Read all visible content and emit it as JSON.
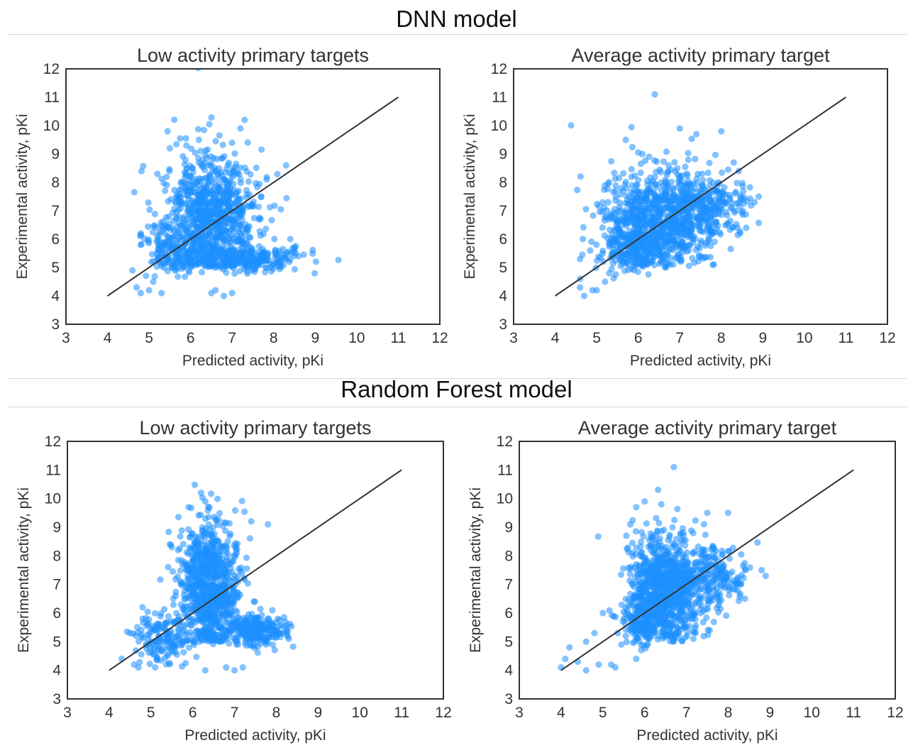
{
  "sections": [
    {
      "title": "DNN model"
    },
    {
      "title": "Random Forest model"
    }
  ],
  "chart_data": [
    {
      "type": "scatter",
      "title": "Low activity primary targets",
      "xlabel": "Predicted activity, pKi",
      "ylabel": "Experimental activity, pKi",
      "xlim": [
        3,
        12
      ],
      "ylim": [
        3,
        12
      ],
      "xticks": [
        "3",
        "4",
        "5",
        "6",
        "7",
        "8",
        "9",
        "10",
        "11",
        "12"
      ],
      "yticks": [
        "3",
        "4",
        "5",
        "6",
        "7",
        "8",
        "9",
        "10",
        "11",
        "12"
      ],
      "reference_line": {
        "x": [
          4,
          11
        ],
        "y": [
          4,
          11
        ]
      },
      "grid": false,
      "point_color": "#1e90ff",
      "line_color": "#333333",
      "cloud": [
        {
          "cx": 6.5,
          "cy": 6.8,
          "sx": 0.55,
          "sy": 1.1,
          "n": 900
        },
        {
          "cx": 7.4,
          "cy": 5.3,
          "sx": 0.6,
          "sy": 0.25,
          "n": 250
        },
        {
          "cx": 5.6,
          "cy": 5.6,
          "sx": 0.35,
          "sy": 0.45,
          "n": 150
        }
      ],
      "outliers": [
        [
          4.6,
          4.9
        ],
        [
          4.7,
          4.3
        ],
        [
          4.8,
          4.1
        ],
        [
          5.0,
          4.2
        ],
        [
          5.1,
          4.5
        ],
        [
          5.3,
          4.1
        ],
        [
          4.8,
          6.2
        ],
        [
          5.2,
          6.1
        ],
        [
          5.2,
          8.3
        ],
        [
          5.5,
          9.2
        ],
        [
          5.9,
          9.3
        ],
        [
          6.2,
          9.5
        ],
        [
          6.6,
          4.2
        ],
        [
          6.8,
          4.0
        ],
        [
          7.0,
          4.1
        ],
        [
          7.3,
          10.2
        ],
        [
          7.2,
          9.9
        ],
        [
          8.3,
          8.6
        ],
        [
          8.6,
          5.4
        ],
        [
          8.5,
          5.7
        ],
        [
          8.4,
          6.0
        ],
        [
          6.5,
          4.1
        ]
      ]
    },
    {
      "type": "scatter",
      "title": "Average activity primary target",
      "xlabel": "Predicted activity, pKi",
      "ylabel": "Experimental activity, pKi",
      "xlim": [
        3,
        12
      ],
      "ylim": [
        3,
        12
      ],
      "xticks": [
        "3",
        "4",
        "5",
        "6",
        "7",
        "8",
        "9",
        "10",
        "11",
        "12"
      ],
      "yticks": [
        "3",
        "4",
        "5",
        "6",
        "7",
        "8",
        "9",
        "10",
        "11",
        "12"
      ],
      "reference_line": {
        "x": [
          4,
          11
        ],
        "y": [
          4,
          11
        ]
      },
      "grid": false,
      "point_color": "#1e90ff",
      "line_color": "#333333",
      "cloud": [
        {
          "cx": 6.5,
          "cy": 6.6,
          "sx": 0.65,
          "sy": 0.9,
          "n": 900
        },
        {
          "cx": 7.7,
          "cy": 7.3,
          "sx": 0.5,
          "sy": 0.5,
          "n": 200
        },
        {
          "cx": 5.8,
          "cy": 5.6,
          "sx": 0.4,
          "sy": 0.4,
          "n": 150
        }
      ],
      "outliers": [
        [
          4.6,
          5.3
        ],
        [
          4.6,
          4.6
        ],
        [
          4.6,
          4.3
        ],
        [
          4.7,
          4.0
        ],
        [
          4.9,
          4.2
        ],
        [
          5.0,
          4.2
        ],
        [
          5.2,
          4.5
        ],
        [
          5.3,
          4.8
        ],
        [
          6.4,
          11.1
        ],
        [
          7.0,
          9.9
        ],
        [
          7.4,
          9.7
        ],
        [
          8.0,
          9.8
        ],
        [
          5.7,
          9.5
        ],
        [
          8.9,
          7.5
        ],
        [
          8.8,
          7.3
        ],
        [
          8.6,
          6.4
        ],
        [
          6.1,
          9.0
        ],
        [
          8.3,
          8.7
        ]
      ]
    },
    {
      "type": "scatter",
      "title": "Low activity primary targets",
      "xlabel": "Predicted activity, pKi",
      "ylabel": "Experimental activity, pKi",
      "xlim": [
        3,
        12
      ],
      "ylim": [
        3,
        12
      ],
      "xticks": [
        "3",
        "4",
        "5",
        "6",
        "7",
        "8",
        "9",
        "10",
        "11",
        "12"
      ],
      "yticks": [
        "3",
        "4",
        "5",
        "6",
        "7",
        "8",
        "9",
        "10",
        "11",
        "12"
      ],
      "reference_line": {
        "x": [
          4,
          11
        ],
        "y": [
          4,
          11
        ]
      },
      "grid": false,
      "point_color": "#1e90ff",
      "line_color": "#333333",
      "cloud": [
        {
          "cx": 6.4,
          "cy": 6.9,
          "sx": 0.35,
          "sy": 1.1,
          "n": 900
        },
        {
          "cx": 7.5,
          "cy": 5.4,
          "sx": 0.35,
          "sy": 0.3,
          "n": 250
        },
        {
          "cx": 5.3,
          "cy": 5.1,
          "sx": 0.35,
          "sy": 0.4,
          "n": 150
        }
      ],
      "outliers": [
        [
          4.3,
          4.4
        ],
        [
          4.5,
          5.3
        ],
        [
          4.6,
          4.2
        ],
        [
          4.7,
          4.1
        ],
        [
          4.8,
          6.2
        ],
        [
          4.8,
          5.8
        ],
        [
          5.1,
          4.1
        ],
        [
          5.5,
          8.3
        ],
        [
          6.2,
          10.2
        ],
        [
          6.3,
          9.9
        ],
        [
          5.9,
          9.7
        ],
        [
          6.3,
          4.0
        ],
        [
          6.8,
          4.1
        ],
        [
          7.0,
          4.0
        ],
        [
          7.2,
          4.1
        ],
        [
          7.8,
          9.1
        ],
        [
          8.3,
          5.1
        ],
        [
          8.2,
          5.5
        ],
        [
          7.4,
          9.2
        ]
      ]
    },
    {
      "type": "scatter",
      "title": "Average activity primary target",
      "xlabel": "Predicted activity, pKi",
      "ylabel": "Experimental activity, pKi",
      "xlim": [
        3,
        12
      ],
      "ylim": [
        3,
        12
      ],
      "xticks": [
        "3",
        "4",
        "5",
        "6",
        "7",
        "8",
        "9",
        "10",
        "11",
        "12"
      ],
      "yticks": [
        "3",
        "4",
        "5",
        "6",
        "7",
        "8",
        "9",
        "10",
        "11",
        "12"
      ],
      "reference_line": {
        "x": [
          4,
          11
        ],
        "y": [
          4,
          11
        ]
      },
      "grid": false,
      "point_color": "#1e90ff",
      "line_color": "#333333",
      "cloud": [
        {
          "cx": 6.5,
          "cy": 6.8,
          "sx": 0.45,
          "sy": 1.0,
          "n": 900
        },
        {
          "cx": 7.6,
          "cy": 7.3,
          "sx": 0.4,
          "sy": 0.5,
          "n": 200
        },
        {
          "cx": 5.9,
          "cy": 5.6,
          "sx": 0.3,
          "sy": 0.4,
          "n": 150
        }
      ],
      "outliers": [
        [
          4.0,
          4.1
        ],
        [
          4.1,
          4.4
        ],
        [
          4.2,
          4.8
        ],
        [
          4.4,
          4.3
        ],
        [
          4.6,
          4.0
        ],
        [
          4.6,
          5.0
        ],
        [
          4.8,
          5.3
        ],
        [
          4.9,
          4.2
        ],
        [
          5.0,
          6.0
        ],
        [
          5.2,
          4.2
        ],
        [
          5.3,
          4.1
        ],
        [
          5.8,
          4.4
        ],
        [
          6.7,
          11.1
        ],
        [
          6.0,
          9.9
        ],
        [
          6.4,
          9.8
        ],
        [
          7.5,
          9.5
        ],
        [
          8.0,
          9.5
        ],
        [
          8.8,
          7.5
        ],
        [
          8.9,
          7.3
        ],
        [
          8.4,
          6.5
        ],
        [
          8.3,
          7.0
        ],
        [
          5.8,
          9.7
        ]
      ]
    }
  ]
}
